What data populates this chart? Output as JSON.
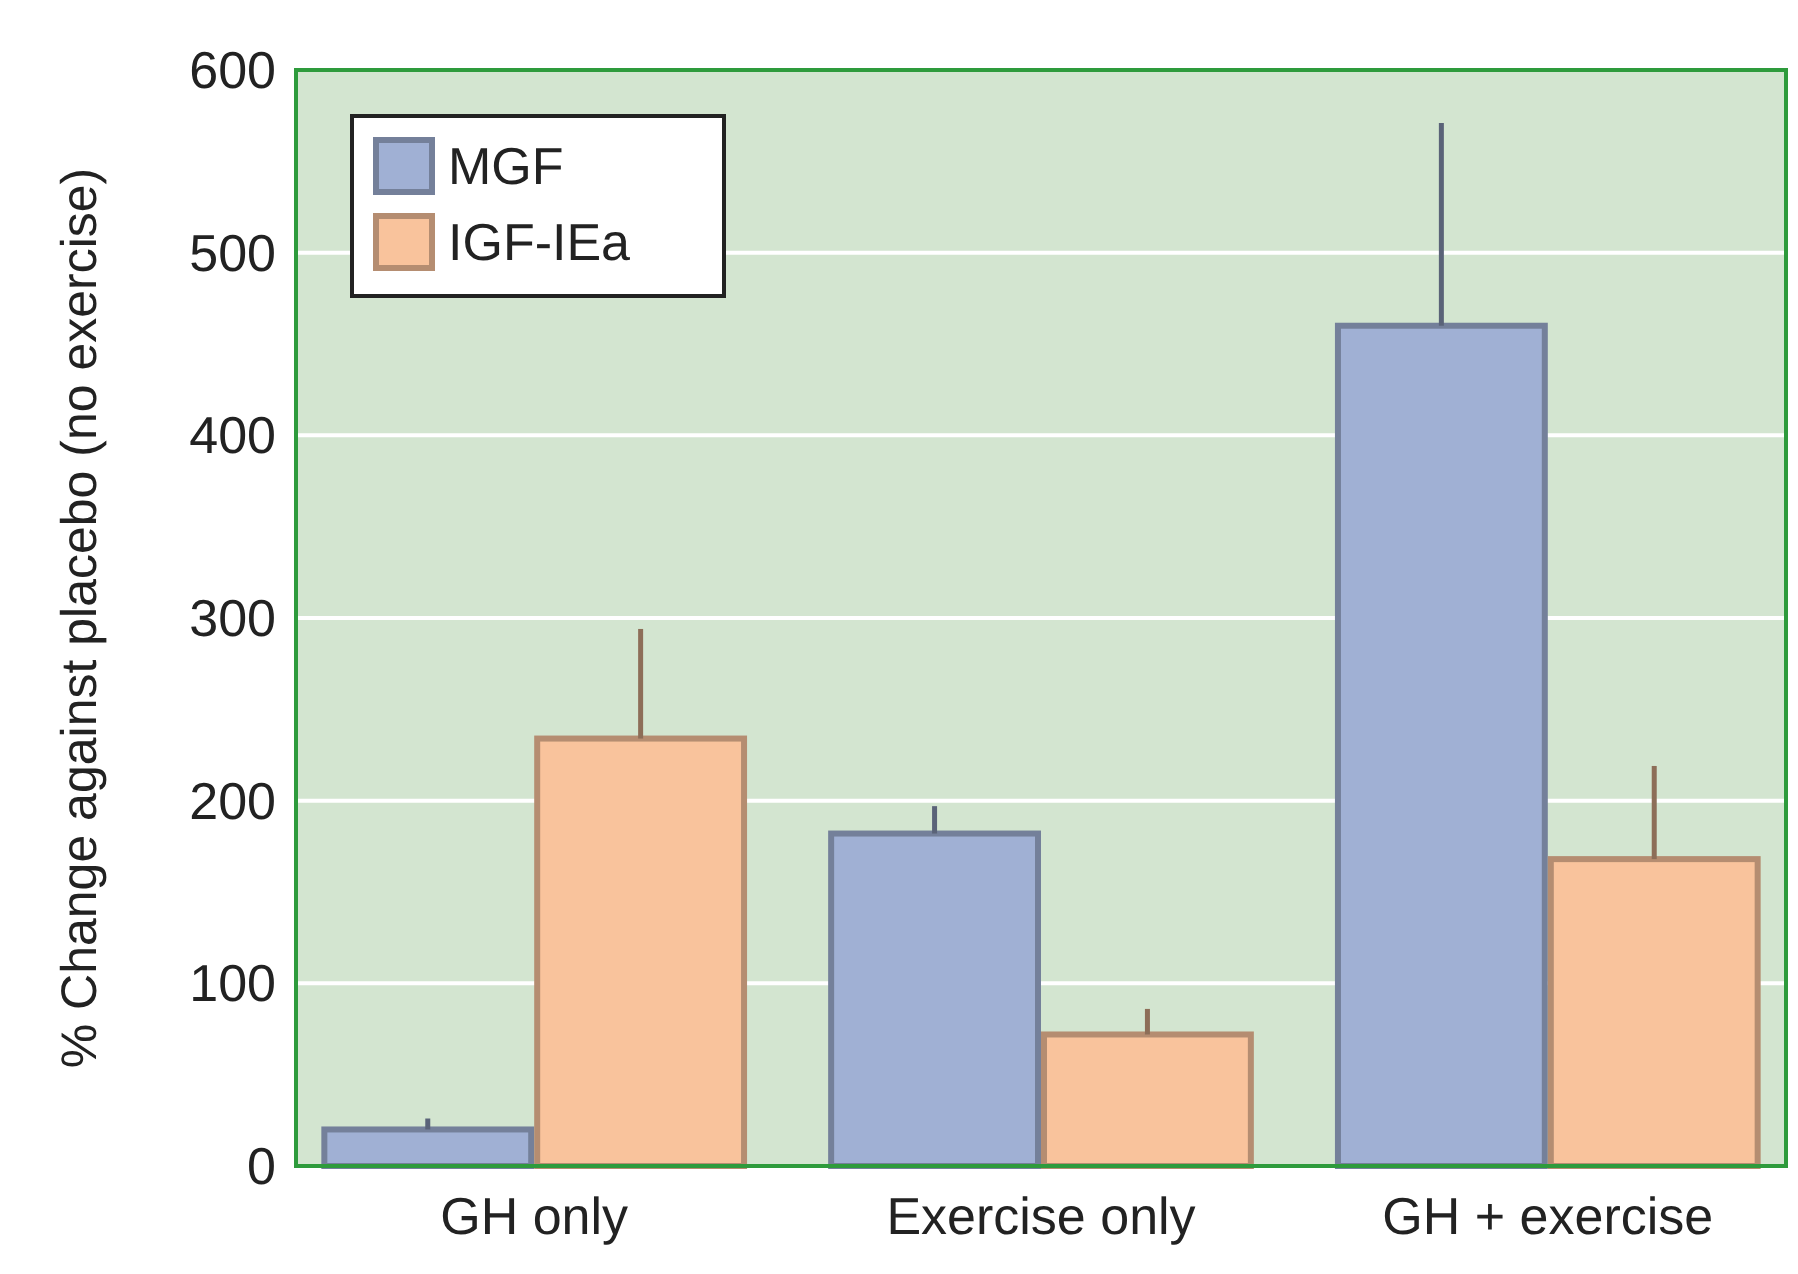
{
  "chart_data": {
    "type": "bar",
    "ylabel": "% Change against placebo (no exercise)",
    "categories": [
      "GH only",
      "Exercise only",
      "GH + exercise"
    ],
    "series": [
      {
        "name": "MGF",
        "color": "#a0b0d4",
        "values": [
          20,
          182,
          460
        ],
        "errors": [
          [
            20,
            26
          ],
          [
            182,
            197
          ],
          [
            460,
            571
          ]
        ]
      },
      {
        "name": "IGF-IEa",
        "color": "#f9c39c",
        "values": [
          234,
          72,
          168
        ],
        "errors": [
          [
            234,
            294
          ],
          [
            72,
            86
          ],
          [
            168,
            219
          ]
        ]
      }
    ],
    "ylim": [
      0,
      600
    ],
    "yticks": [
      0,
      100,
      200,
      300,
      400,
      500,
      600
    ],
    "grid": "y",
    "legend": "top left"
  }
}
